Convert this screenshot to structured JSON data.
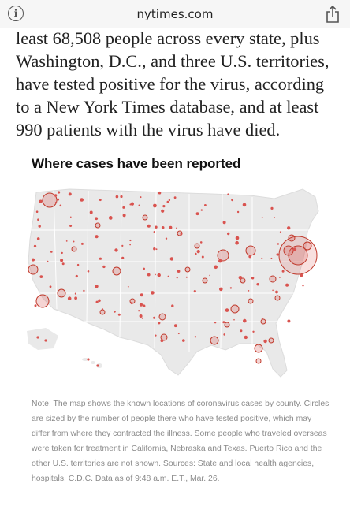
{
  "browser": {
    "domain": "nytimes.com",
    "info_icon": "info-icon",
    "share_icon": "share-icon"
  },
  "article": {
    "paragraph": "least 68,508 people across every state, plus Washington, D.C., and three U.S. territories, have tested positive for the virus, according to a New York Times database, and at least 990 patients with the virus have died."
  },
  "map": {
    "title": "Where cases have been reported",
    "note": "Note: The map shows the known locations of coronavirus cases by county. Circles are sized by the number of people there who have tested positive, which may differ from where they contracted the illness. Some people who traveled overseas were taken for treatment in California, Nebraska and Texas. Puerto Rico and the other U.S. territories are not shown. Sources: State and local health agencies, hospitals, C.D.C. Data as of 9:48 a.m. E.T., Mar. 26.",
    "colors": {
      "land": "#e9e9e9",
      "border": "#ffffff",
      "circle_stroke": "#c0392b",
      "circle_fill": "#d9534f"
    }
  }
}
